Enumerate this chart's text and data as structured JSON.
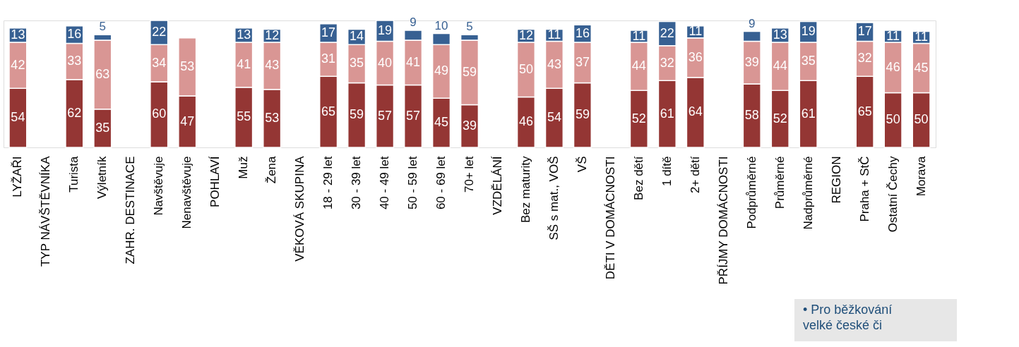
{
  "chart_data": {
    "type": "bar",
    "stacked": true,
    "data_labels": true,
    "legend": false,
    "grid": false,
    "categories": [
      "LYŽAŘI",
      "TYP NÁVŠTĚVNÍKA",
      "Turista",
      "Výletník",
      "ZAHR. DESTINACE",
      "Navštěvuje",
      "Nenavštěvuje",
      "POHLAVÍ",
      "Muž",
      "Žena",
      "VĚKOVÁ SKUPINA",
      "18 - 29 let",
      "30 - 39 let",
      "40 - 49 let",
      "50 - 59 let",
      "60 - 69 let",
      "70+ let",
      "VZDĚLÁNÍ",
      "Bez maturity",
      "SŠ s mat., VOŠ",
      "VŠ",
      "DĚTI V DOMÁCNOSTI",
      "Bez dětí",
      "1 dítě",
      "2+ dětí",
      "PŘÍJMY DOMÁCNOSTI",
      "Podprůměrné",
      "Průměrné",
      "Nadprůměrné",
      "REGION",
      "Praha + StČ",
      "Ostatní Čechy",
      "Morava"
    ],
    "series": [
      {
        "color": "#943634",
        "values": [
          54,
          null,
          62,
          35,
          null,
          60,
          47,
          null,
          55,
          53,
          null,
          65,
          59,
          57,
          57,
          45,
          39,
          null,
          46,
          54,
          59,
          null,
          52,
          61,
          64,
          null,
          58,
          52,
          61,
          null,
          65,
          50,
          50
        ]
      },
      {
        "color": "#d99694",
        "values": [
          42,
          null,
          33,
          63,
          null,
          34,
          53,
          null,
          41,
          43,
          null,
          31,
          35,
          40,
          41,
          49,
          59,
          null,
          50,
          43,
          37,
          null,
          44,
          32,
          36,
          null,
          39,
          44,
          35,
          null,
          32,
          46,
          45
        ]
      },
      {
        "color": "#376092",
        "values": [
          13,
          null,
          16,
          5,
          null,
          22,
          null,
          null,
          13,
          12,
          null,
          17,
          14,
          19,
          9,
          10,
          5,
          null,
          12,
          11,
          16,
          null,
          11,
          22,
          11,
          null,
          9,
          13,
          19,
          null,
          17,
          11,
          11
        ]
      }
    ],
    "annotations": [
      "• Pro běžkování velké české či"
    ]
  }
}
